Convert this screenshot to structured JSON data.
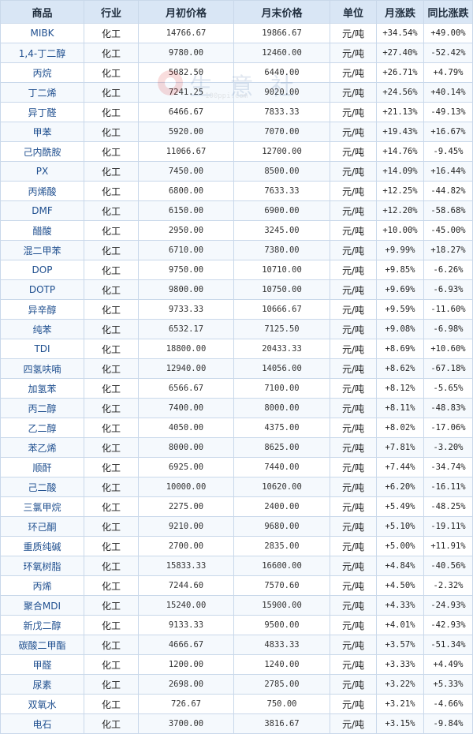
{
  "watermark": {
    "text": "生 意 社",
    "url": "100ppi.com"
  },
  "table": {
    "headers": [
      "商品",
      "行业",
      "月初价格",
      "月末价格",
      "单位",
      "月涨跌",
      "同比涨跌"
    ],
    "rows": [
      {
        "name": "MIBK",
        "industry": "化工",
        "start": "14766.67",
        "end": "19866.67",
        "unit": "元/吨",
        "mchg": "+34.54%",
        "ychg": "+49.00%"
      },
      {
        "name": "1,4-丁二醇",
        "industry": "化工",
        "start": "9780.00",
        "end": "12460.00",
        "unit": "元/吨",
        "mchg": "+27.40%",
        "ychg": "-52.42%"
      },
      {
        "name": "丙烷",
        "industry": "化工",
        "start": "5082.50",
        "end": "6440.00",
        "unit": "元/吨",
        "mchg": "+26.71%",
        "ychg": "+4.79%"
      },
      {
        "name": "丁二烯",
        "industry": "化工",
        "start": "7241.25",
        "end": "9020.00",
        "unit": "元/吨",
        "mchg": "+24.56%",
        "ychg": "+40.14%"
      },
      {
        "name": "异丁醛",
        "industry": "化工",
        "start": "6466.67",
        "end": "7833.33",
        "unit": "元/吨",
        "mchg": "+21.13%",
        "ychg": "-49.13%"
      },
      {
        "name": "甲苯",
        "industry": "化工",
        "start": "5920.00",
        "end": "7070.00",
        "unit": "元/吨",
        "mchg": "+19.43%",
        "ychg": "+16.67%"
      },
      {
        "name": "己内酰胺",
        "industry": "化工",
        "start": "11066.67",
        "end": "12700.00",
        "unit": "元/吨",
        "mchg": "+14.76%",
        "ychg": "-9.45%"
      },
      {
        "name": "PX",
        "industry": "化工",
        "start": "7450.00",
        "end": "8500.00",
        "unit": "元/吨",
        "mchg": "+14.09%",
        "ychg": "+16.44%"
      },
      {
        "name": "丙烯酸",
        "industry": "化工",
        "start": "6800.00",
        "end": "7633.33",
        "unit": "元/吨",
        "mchg": "+12.25%",
        "ychg": "-44.82%"
      },
      {
        "name": "DMF",
        "industry": "化工",
        "start": "6150.00",
        "end": "6900.00",
        "unit": "元/吨",
        "mchg": "+12.20%",
        "ychg": "-58.68%"
      },
      {
        "name": "醋酸",
        "industry": "化工",
        "start": "2950.00",
        "end": "3245.00",
        "unit": "元/吨",
        "mchg": "+10.00%",
        "ychg": "-45.00%"
      },
      {
        "name": "混二甲苯",
        "industry": "化工",
        "start": "6710.00",
        "end": "7380.00",
        "unit": "元/吨",
        "mchg": "+9.99%",
        "ychg": "+18.27%"
      },
      {
        "name": "DOP",
        "industry": "化工",
        "start": "9750.00",
        "end": "10710.00",
        "unit": "元/吨",
        "mchg": "+9.85%",
        "ychg": "-6.26%"
      },
      {
        "name": "DOTP",
        "industry": "化工",
        "start": "9800.00",
        "end": "10750.00",
        "unit": "元/吨",
        "mchg": "+9.69%",
        "ychg": "-6.93%"
      },
      {
        "name": "异辛醇",
        "industry": "化工",
        "start": "9733.33",
        "end": "10666.67",
        "unit": "元/吨",
        "mchg": "+9.59%",
        "ychg": "-11.60%"
      },
      {
        "name": "纯苯",
        "industry": "化工",
        "start": "6532.17",
        "end": "7125.50",
        "unit": "元/吨",
        "mchg": "+9.08%",
        "ychg": "-6.98%"
      },
      {
        "name": "TDI",
        "industry": "化工",
        "start": "18800.00",
        "end": "20433.33",
        "unit": "元/吨",
        "mchg": "+8.69%",
        "ychg": "+10.60%"
      },
      {
        "name": "四氢呋喃",
        "industry": "化工",
        "start": "12940.00",
        "end": "14056.00",
        "unit": "元/吨",
        "mchg": "+8.62%",
        "ychg": "-67.18%"
      },
      {
        "name": "加氢苯",
        "industry": "化工",
        "start": "6566.67",
        "end": "7100.00",
        "unit": "元/吨",
        "mchg": "+8.12%",
        "ychg": "-5.65%"
      },
      {
        "name": "丙二醇",
        "industry": "化工",
        "start": "7400.00",
        "end": "8000.00",
        "unit": "元/吨",
        "mchg": "+8.11%",
        "ychg": "-48.83%"
      },
      {
        "name": "乙二醇",
        "industry": "化工",
        "start": "4050.00",
        "end": "4375.00",
        "unit": "元/吨",
        "mchg": "+8.02%",
        "ychg": "-17.06%"
      },
      {
        "name": "苯乙烯",
        "industry": "化工",
        "start": "8000.00",
        "end": "8625.00",
        "unit": "元/吨",
        "mchg": "+7.81%",
        "ychg": "-3.20%"
      },
      {
        "name": "顺酐",
        "industry": "化工",
        "start": "6925.00",
        "end": "7440.00",
        "unit": "元/吨",
        "mchg": "+7.44%",
        "ychg": "-34.74%"
      },
      {
        "name": "己二酸",
        "industry": "化工",
        "start": "10000.00",
        "end": "10620.00",
        "unit": "元/吨",
        "mchg": "+6.20%",
        "ychg": "-16.11%"
      },
      {
        "name": "三氯甲烷",
        "industry": "化工",
        "start": "2275.00",
        "end": "2400.00",
        "unit": "元/吨",
        "mchg": "+5.49%",
        "ychg": "-48.25%"
      },
      {
        "name": "环己酮",
        "industry": "化工",
        "start": "9210.00",
        "end": "9680.00",
        "unit": "元/吨",
        "mchg": "+5.10%",
        "ychg": "-19.11%"
      },
      {
        "name": "重质纯碱",
        "industry": "化工",
        "start": "2700.00",
        "end": "2835.00",
        "unit": "元/吨",
        "mchg": "+5.00%",
        "ychg": "+11.91%"
      },
      {
        "name": "环氧树脂",
        "industry": "化工",
        "start": "15833.33",
        "end": "16600.00",
        "unit": "元/吨",
        "mchg": "+4.84%",
        "ychg": "-40.56%"
      },
      {
        "name": "丙烯",
        "industry": "化工",
        "start": "7244.60",
        "end": "7570.60",
        "unit": "元/吨",
        "mchg": "+4.50%",
        "ychg": "-2.32%"
      },
      {
        "name": "聚合MDI",
        "industry": "化工",
        "start": "15240.00",
        "end": "15900.00",
        "unit": "元/吨",
        "mchg": "+4.33%",
        "ychg": "-24.93%"
      },
      {
        "name": "新戊二醇",
        "industry": "化工",
        "start": "9133.33",
        "end": "9500.00",
        "unit": "元/吨",
        "mchg": "+4.01%",
        "ychg": "-42.93%"
      },
      {
        "name": "碳酸二甲酯",
        "industry": "化工",
        "start": "4666.67",
        "end": "4833.33",
        "unit": "元/吨",
        "mchg": "+3.57%",
        "ychg": "-51.34%"
      },
      {
        "name": "甲醛",
        "industry": "化工",
        "start": "1200.00",
        "end": "1240.00",
        "unit": "元/吨",
        "mchg": "+3.33%",
        "ychg": "+4.49%"
      },
      {
        "name": "尿素",
        "industry": "化工",
        "start": "2698.00",
        "end": "2785.00",
        "unit": "元/吨",
        "mchg": "+3.22%",
        "ychg": "+5.33%"
      },
      {
        "name": "双氧水",
        "industry": "化工",
        "start": "726.67",
        "end": "750.00",
        "unit": "元/吨",
        "mchg": "+3.21%",
        "ychg": "-4.66%"
      },
      {
        "name": "电石",
        "industry": "化工",
        "start": "3700.00",
        "end": "3816.67",
        "unit": "元/吨",
        "mchg": "+3.15%",
        "ychg": "-9.84%"
      }
    ]
  },
  "colors": {
    "up": "#e60000",
    "down": "#008a00",
    "header_bg": "#d9e6f5",
    "name_text": "#1f4f8f"
  }
}
